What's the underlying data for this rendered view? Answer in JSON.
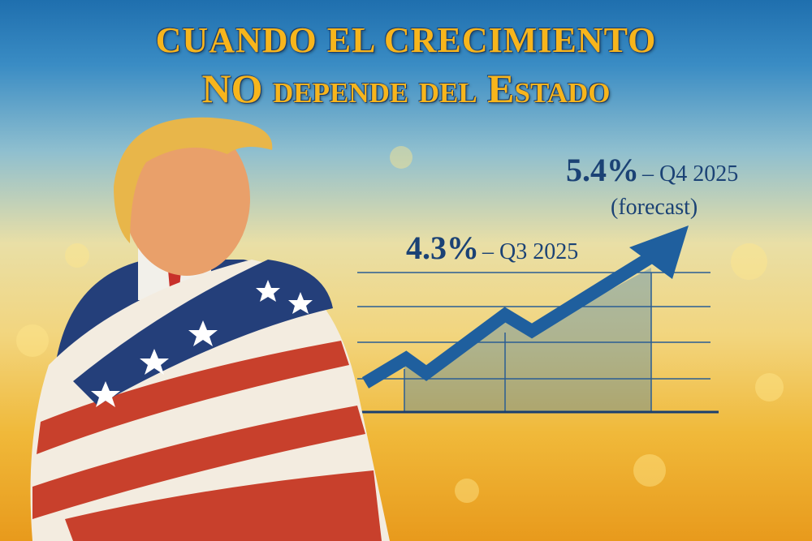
{
  "title": {
    "line1": "CUANDO EL CRECIMIENTO",
    "line2": "NO depende del Estado"
  },
  "annotations": {
    "q3": {
      "value": "4.3%",
      "label": "– Q3 2025"
    },
    "q4": {
      "value": "5.4%",
      "label": "– Q4 2025",
      "note": "(forecast)"
    }
  },
  "colors": {
    "title": "#f7b51c",
    "chart": "#1f5f9e",
    "text": "#1b4275",
    "flag_red": "#c8402c",
    "flag_blue": "#243f7a"
  }
}
